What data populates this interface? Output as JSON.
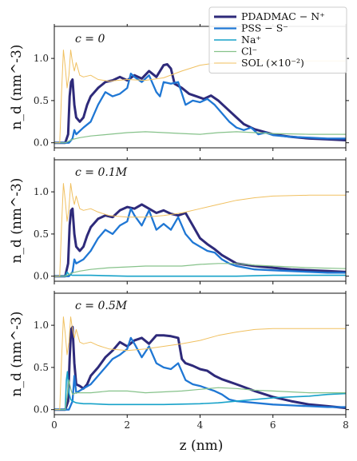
{
  "chart_data": {
    "type": "line",
    "xlabel": "z (nm)",
    "ylabel": "n_d (nm^-3)",
    "xlim": [
      0,
      8
    ],
    "ylim": [
      -0.06,
      1.38
    ],
    "xticks": [
      "0",
      "2",
      "4",
      "6",
      "8"
    ],
    "yticks": [
      "0.0",
      "0.5",
      "1.0"
    ],
    "legend_placement": "top-right",
    "legend": [
      {
        "label": "PDADMAC − N⁺",
        "color": "#2e2a7a"
      },
      {
        "label": "PSS − S⁻",
        "color": "#1f77d4"
      },
      {
        "label": "Na⁺",
        "color": "#17a2c9"
      },
      {
        "label": "Cl⁻",
        "color": "#86c28a"
      },
      {
        "label": "SOL (×10⁻²)",
        "color": "#f0c060"
      }
    ],
    "panels": [
      {
        "label": "c = 0",
        "series": [
          {
            "name": "PDADMAC − N⁺",
            "color": "#2e2a7a",
            "width": 3,
            "x": [
              0.0,
              0.3,
              0.38,
              0.42,
              0.46,
              0.5,
              0.55,
              0.6,
              0.7,
              0.8,
              0.9,
              1.0,
              1.2,
              1.4,
              1.6,
              1.8,
              2.0,
              2.2,
              2.4,
              2.6,
              2.8,
              3.0,
              3.1,
              3.2,
              3.3,
              3.5,
              3.7,
              3.9,
              4.1,
              4.3,
              4.5,
              4.7,
              5.0,
              5.2,
              5.5,
              6.0,
              6.5,
              7.0,
              7.5,
              8.0
            ],
            "y": [
              0,
              0,
              0.1,
              0.55,
              0.72,
              0.75,
              0.45,
              0.3,
              0.25,
              0.3,
              0.45,
              0.55,
              0.65,
              0.72,
              0.74,
              0.78,
              0.74,
              0.8,
              0.76,
              0.85,
              0.78,
              0.92,
              0.93,
              0.88,
              0.7,
              0.65,
              0.58,
              0.55,
              0.52,
              0.56,
              0.5,
              0.42,
              0.3,
              0.22,
              0.16,
              0.1,
              0.07,
              0.05,
              0.04,
              0.03
            ]
          },
          {
            "name": "PSS − S⁻",
            "color": "#1f77d4",
            "width": 2.3,
            "x": [
              0.0,
              0.4,
              0.5,
              0.55,
              0.6,
              0.8,
              1.0,
              1.2,
              1.4,
              1.6,
              1.8,
              2.0,
              2.1,
              2.2,
              2.4,
              2.6,
              2.8,
              2.9,
              3.0,
              3.2,
              3.4,
              3.6,
              3.8,
              4.0,
              4.2,
              4.4,
              4.6,
              4.8,
              5.0,
              5.2,
              5.4,
              5.6,
              5.8,
              6.0,
              6.5,
              7.0,
              7.5,
              8.0
            ],
            "y": [
              0,
              0,
              0.05,
              0.15,
              0.1,
              0.18,
              0.25,
              0.45,
              0.6,
              0.55,
              0.58,
              0.65,
              0.82,
              0.78,
              0.72,
              0.8,
              0.6,
              0.55,
              0.72,
              0.7,
              0.72,
              0.45,
              0.5,
              0.48,
              0.52,
              0.45,
              0.35,
              0.25,
              0.18,
              0.15,
              0.18,
              0.1,
              0.12,
              0.09,
              0.07,
              0.06,
              0.05,
              0.05
            ]
          },
          {
            "name": "Cl⁻",
            "color": "#86c28a",
            "width": 1.2,
            "x": [
              0.0,
              0.3,
              0.5,
              0.7,
              1.0,
              1.5,
              2.0,
              2.5,
              3.0,
              3.5,
              4.0,
              4.5,
              5.0,
              5.5,
              6.0,
              7.0,
              8.0
            ],
            "y": [
              0,
              0,
              0.04,
              0.06,
              0.08,
              0.1,
              0.12,
              0.13,
              0.12,
              0.11,
              0.1,
              0.12,
              0.13,
              0.12,
              0.11,
              0.1,
              0.1
            ]
          },
          {
            "name": "SOL (×10⁻²)",
            "color": "#f0c060",
            "width": 1,
            "x": [
              0.0,
              0.15,
              0.2,
              0.25,
              0.3,
              0.35,
              0.4,
              0.45,
              0.5,
              0.55,
              0.6,
              0.7,
              0.8,
              1.0,
              1.2,
              1.5,
              2.0,
              2.5,
              3.0,
              3.5,
              4.0,
              4.5,
              5.0,
              5.5,
              6.0,
              7.0,
              8.0
            ],
            "y": [
              0,
              0,
              0.6,
              1.1,
              0.9,
              0.65,
              0.8,
              1.1,
              0.95,
              0.85,
              0.95,
              0.8,
              0.78,
              0.8,
              0.75,
              0.73,
              0.75,
              0.74,
              0.77,
              0.85,
              0.92,
              0.95,
              0.97,
              0.97,
              0.97,
              0.97,
              0.97
            ]
          }
        ]
      },
      {
        "label": "c = 0.1M",
        "series": [
          {
            "name": "PDADMAC − N⁺",
            "color": "#2e2a7a",
            "width": 3,
            "x": [
              0.0,
              0.3,
              0.38,
              0.42,
              0.46,
              0.5,
              0.55,
              0.6,
              0.7,
              0.8,
              0.9,
              1.0,
              1.2,
              1.4,
              1.6,
              1.8,
              2.0,
              2.2,
              2.4,
              2.6,
              2.8,
              3.0,
              3.2,
              3.4,
              3.6,
              3.8,
              4.0,
              4.2,
              4.4,
              4.6,
              4.8,
              5.0,
              5.5,
              6.0,
              6.5,
              7.0,
              7.5,
              8.0
            ],
            "y": [
              0,
              0,
              0.15,
              0.6,
              0.78,
              0.8,
              0.5,
              0.35,
              0.3,
              0.35,
              0.48,
              0.58,
              0.68,
              0.72,
              0.7,
              0.78,
              0.82,
              0.8,
              0.85,
              0.8,
              0.75,
              0.78,
              0.74,
              0.72,
              0.75,
              0.6,
              0.45,
              0.38,
              0.32,
              0.25,
              0.2,
              0.15,
              0.12,
              0.1,
              0.08,
              0.07,
              0.06,
              0.05
            ]
          },
          {
            "name": "PSS − S⁻",
            "color": "#1f77d4",
            "width": 2.3,
            "x": [
              0.0,
              0.4,
              0.5,
              0.55,
              0.6,
              0.8,
              1.0,
              1.2,
              1.4,
              1.6,
              1.8,
              2.0,
              2.1,
              2.2,
              2.4,
              2.6,
              2.8,
              3.0,
              3.2,
              3.4,
              3.6,
              3.8,
              4.0,
              4.2,
              4.4,
              4.6,
              4.8,
              5.0,
              5.5,
              6.0,
              6.5,
              7.0,
              7.5,
              8.0
            ],
            "y": [
              0,
              0,
              0.05,
              0.2,
              0.15,
              0.2,
              0.3,
              0.45,
              0.55,
              0.5,
              0.6,
              0.65,
              0.8,
              0.72,
              0.6,
              0.78,
              0.55,
              0.62,
              0.55,
              0.7,
              0.5,
              0.4,
              0.35,
              0.3,
              0.28,
              0.2,
              0.15,
              0.12,
              0.08,
              0.07,
              0.06,
              0.05,
              0.04,
              0.04
            ]
          },
          {
            "name": "Na⁺",
            "color": "#17a2c9",
            "width": 1.6,
            "x": [
              0.0,
              0.3,
              0.35,
              0.4,
              0.5,
              0.7,
              1.0,
              2.0,
              3.0,
              4.0,
              5.0,
              6.0,
              7.0,
              8.0
            ],
            "y": [
              0,
              0,
              0.05,
              0.02,
              0.01,
              0.01,
              0.01,
              0.0,
              0.0,
              0.0,
              0.0,
              0.01,
              0.01,
              0.01
            ]
          },
          {
            "name": "Cl⁻",
            "color": "#86c28a",
            "width": 1.2,
            "x": [
              0.0,
              0.3,
              0.5,
              0.7,
              1.0,
              1.5,
              2.0,
              2.5,
              3.0,
              3.5,
              4.0,
              4.5,
              5.0,
              5.5,
              6.0,
              7.0,
              8.0
            ],
            "y": [
              0,
              0,
              0.04,
              0.06,
              0.08,
              0.1,
              0.11,
              0.12,
              0.12,
              0.12,
              0.14,
              0.15,
              0.15,
              0.13,
              0.12,
              0.1,
              0.09
            ]
          },
          {
            "name": "SOL (×10⁻²)",
            "color": "#f0c060",
            "width": 1,
            "x": [
              0.0,
              0.15,
              0.2,
              0.25,
              0.3,
              0.35,
              0.4,
              0.45,
              0.5,
              0.55,
              0.6,
              0.7,
              0.8,
              1.0,
              1.2,
              1.5,
              2.0,
              2.5,
              3.0,
              3.5,
              4.0,
              4.5,
              5.0,
              5.5,
              6.0,
              7.0,
              8.0
            ],
            "y": [
              0,
              0,
              0.6,
              1.1,
              0.9,
              0.65,
              0.8,
              1.1,
              0.95,
              0.85,
              0.95,
              0.8,
              0.78,
              0.8,
              0.76,
              0.72,
              0.7,
              0.7,
              0.72,
              0.75,
              0.8,
              0.85,
              0.9,
              0.93,
              0.95,
              0.96,
              0.96
            ]
          }
        ]
      },
      {
        "label": "c = 0.5M",
        "series": [
          {
            "name": "PDADMAC − N⁺",
            "color": "#2e2a7a",
            "width": 3,
            "x": [
              0.0,
              0.3,
              0.38,
              0.42,
              0.46,
              0.5,
              0.55,
              0.6,
              0.7,
              0.8,
              0.9,
              1.0,
              1.2,
              1.4,
              1.6,
              1.8,
              2.0,
              2.2,
              2.4,
              2.6,
              2.8,
              3.0,
              3.2,
              3.4,
              3.5,
              3.6,
              3.8,
              4.0,
              4.2,
              4.4,
              4.6,
              4.8,
              5.0,
              5.5,
              6.0,
              6.5,
              7.0,
              7.5,
              8.0
            ],
            "y": [
              0,
              0,
              0.1,
              0.6,
              0.95,
              0.98,
              0.55,
              0.3,
              0.28,
              0.25,
              0.3,
              0.4,
              0.5,
              0.62,
              0.7,
              0.8,
              0.75,
              0.82,
              0.85,
              0.78,
              0.88,
              0.88,
              0.87,
              0.85,
              0.6,
              0.55,
              0.52,
              0.48,
              0.46,
              0.4,
              0.36,
              0.33,
              0.3,
              0.22,
              0.15,
              0.1,
              0.06,
              0.04,
              0.02
            ]
          },
          {
            "name": "PSS − S⁻",
            "color": "#1f77d4",
            "width": 2.3,
            "x": [
              0.0,
              0.4,
              0.5,
              0.55,
              0.6,
              0.8,
              1.0,
              1.2,
              1.4,
              1.6,
              1.8,
              2.0,
              2.1,
              2.2,
              2.4,
              2.6,
              2.8,
              3.0,
              3.2,
              3.4,
              3.6,
              3.8,
              4.0,
              4.2,
              4.4,
              4.6,
              4.8,
              5.0,
              5.5,
              6.0,
              6.5,
              7.0,
              7.5,
              8.0
            ],
            "y": [
              0,
              0,
              0.1,
              0.4,
              0.2,
              0.25,
              0.3,
              0.4,
              0.5,
              0.6,
              0.65,
              0.72,
              0.85,
              0.78,
              0.62,
              0.75,
              0.55,
              0.5,
              0.48,
              0.55,
              0.35,
              0.3,
              0.28,
              0.25,
              0.22,
              0.18,
              0.12,
              0.1,
              0.08,
              0.06,
              0.05,
              0.04,
              0.03,
              0.03
            ]
          },
          {
            "name": "Na⁺",
            "color": "#17a2c9",
            "width": 1.6,
            "x": [
              0.0,
              0.3,
              0.33,
              0.36,
              0.4,
              0.45,
              0.5,
              0.6,
              0.8,
              1.0,
              1.5,
              2.0,
              3.0,
              4.0,
              4.5,
              5.0,
              5.5,
              6.0,
              6.5,
              7.0,
              7.5,
              8.0
            ],
            "y": [
              0,
              0,
              0.35,
              0.45,
              0.2,
              0.12,
              0.1,
              0.08,
              0.07,
              0.07,
              0.06,
              0.06,
              0.06,
              0.07,
              0.08,
              0.1,
              0.12,
              0.14,
              0.15,
              0.16,
              0.18,
              0.19
            ]
          },
          {
            "name": "Cl⁻",
            "color": "#86c28a",
            "width": 1.2,
            "x": [
              0.0,
              0.3,
              0.35,
              0.4,
              0.45,
              0.5,
              0.6,
              0.8,
              1.0,
              1.5,
              2.0,
              2.5,
              3.0,
              3.5,
              4.0,
              4.5,
              5.0,
              5.5,
              6.0,
              6.5,
              7.0,
              7.5,
              8.0
            ],
            "y": [
              0,
              0,
              0.15,
              0.35,
              0.25,
              0.18,
              0.2,
              0.2,
              0.2,
              0.22,
              0.22,
              0.2,
              0.21,
              0.22,
              0.24,
              0.26,
              0.25,
              0.23,
              0.22,
              0.21,
              0.2,
              0.2,
              0.2
            ]
          },
          {
            "name": "SOL (×10⁻²)",
            "color": "#f0c060",
            "width": 1,
            "x": [
              0.0,
              0.15,
              0.2,
              0.25,
              0.3,
              0.35,
              0.4,
              0.45,
              0.5,
              0.55,
              0.6,
              0.7,
              0.8,
              1.0,
              1.2,
              1.5,
              2.0,
              2.5,
              3.0,
              3.5,
              4.0,
              4.5,
              5.0,
              5.5,
              6.0,
              7.0,
              8.0
            ],
            "y": [
              0,
              0,
              0.6,
              1.1,
              0.9,
              0.65,
              0.8,
              1.1,
              0.95,
              0.85,
              0.95,
              0.8,
              0.78,
              0.8,
              0.76,
              0.72,
              0.7,
              0.72,
              0.75,
              0.78,
              0.82,
              0.88,
              0.92,
              0.95,
              0.96,
              0.96,
              0.96
            ]
          }
        ]
      }
    ]
  }
}
